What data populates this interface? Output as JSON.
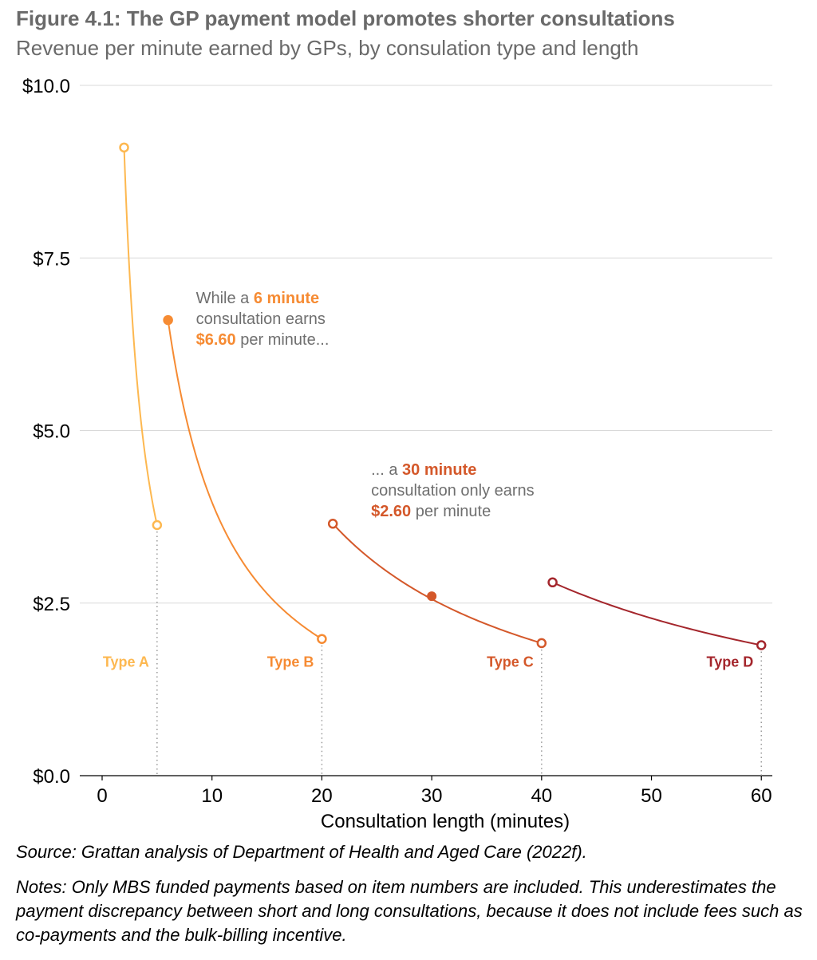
{
  "title": "Figure 4.1: The GP payment model promotes shorter consultations",
  "subtitle": "Revenue per minute earned by GPs, by consulation type and length",
  "chart_data": {
    "type": "line",
    "xlabel": "Consultation length (minutes)",
    "ylabel": "",
    "xlim": [
      0,
      61
    ],
    "ylim": [
      0,
      10
    ],
    "x_ticks": [
      0,
      10,
      20,
      30,
      40,
      50,
      60
    ],
    "x_tick_labels": [
      "0",
      "10",
      "20",
      "30",
      "40",
      "50",
      "60"
    ],
    "y_ticks": [
      0,
      2.5,
      5,
      7.5,
      10
    ],
    "y_tick_labels": [
      "$0.0",
      "$2.5",
      "$5.0",
      "$7.5",
      "$10.0"
    ],
    "grid": true,
    "series": [
      {
        "name": "Type A",
        "color": "#fdb850",
        "x": [
          2,
          5
        ],
        "y": [
          9.1,
          3.63
        ],
        "x_label_at": 5
      },
      {
        "name": "Type B",
        "color": "#f68b33",
        "x": [
          6,
          20
        ],
        "y": [
          6.6,
          1.98
        ],
        "x_label_at": 20
      },
      {
        "name": "Type C",
        "color": "#d4582a",
        "x": [
          21,
          40
        ],
        "y": [
          3.65,
          1.92
        ],
        "x_label_at": 40
      },
      {
        "name": "Type D",
        "color": "#a4262c",
        "x": [
          41,
          60
        ],
        "y": [
          2.8,
          1.89
        ],
        "x_label_at": 60
      }
    ],
    "highlights": [
      {
        "series": "Type B",
        "x": 6,
        "y": 6.6
      },
      {
        "series": "Type C",
        "x": 30,
        "y": 2.6
      }
    ],
    "annotations": [
      {
        "anchor_x": 6,
        "anchor_y": 6.6,
        "color": "#f68b33",
        "lines": [
          [
            {
              "text": "While a ",
              "bold": false
            },
            {
              "text": "6 minute",
              "bold": true
            }
          ],
          [
            {
              "text": "consultation earns",
              "bold": false
            }
          ],
          [
            {
              "text": "$6.60",
              "bold": true
            },
            {
              "text": " per minute...",
              "bold": false
            }
          ]
        ]
      },
      {
        "anchor_x": 30,
        "anchor_y": 2.6,
        "color": "#d4582a",
        "lines": [
          [
            {
              "text": "... a ",
              "bold": false
            },
            {
              "text": "30 minute",
              "bold": true
            }
          ],
          [
            {
              "text": "consultation only earns",
              "bold": false
            }
          ],
          [
            {
              "text": "$2.60",
              "bold": true
            },
            {
              "text": " per minute",
              "bold": false
            }
          ]
        ]
      }
    ]
  },
  "source": "Source: Grattan analysis of Department of Health and Aged Care (2022f).",
  "notes": "Notes: Only MBS funded payments based on item numbers are included. This underestimates the payment discrepancy between short and long consultations, because it does not include fees such as co-payments and the bulk-billing incentive."
}
